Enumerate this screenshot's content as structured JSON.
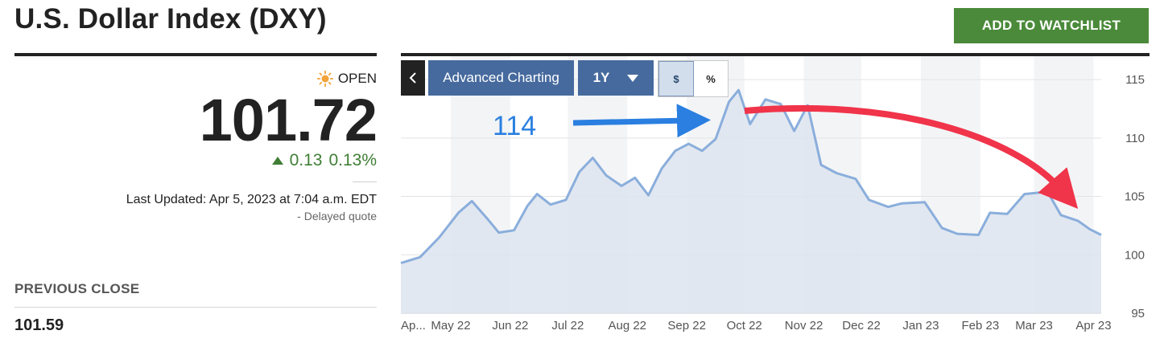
{
  "header": {
    "title": "U.S. Dollar Index (DXY)",
    "watchlist_button": "ADD TO WATCHLIST"
  },
  "quote": {
    "status": "OPEN",
    "price": "101.72",
    "change": "0.13",
    "change_pct": "0.13%",
    "last_updated": "Last Updated: Apr 5, 2023 at 7:04 a.m. EDT",
    "delayed": "-  Delayed quote",
    "previous_close_label": "PREVIOUS CLOSE",
    "previous_close_value": "101.59"
  },
  "chart_toolbar": {
    "back_icon": "chevron-left-icon",
    "advanced_label": "Advanced Charting",
    "range_label": "1Y",
    "currency_label": "$",
    "percent_label": "%",
    "selected_mode": "$"
  },
  "annotation": {
    "peak_label": "114"
  },
  "colors": {
    "accent_green": "#4a8a3a",
    "up_green": "#3f7e35",
    "toolbar_blue": "#466a9e",
    "line_blue": "#8aaedc",
    "area_fill": "#dde4ee",
    "annotation_blue": "#2a7fe0",
    "annotation_red": "#f0344a"
  },
  "chart_data": {
    "type": "area",
    "title": "",
    "xlabel": "",
    "ylabel": "",
    "ylim": [
      95,
      117
    ],
    "yticks": [
      95,
      100,
      105,
      110,
      115
    ],
    "x_tick_labels": [
      "Ap...",
      "May 22",
      "Jun 22",
      "Jul 22",
      "Aug 22",
      "Sep 22",
      "Oct 22",
      "Nov 22",
      "Dec 22",
      "Jan 23",
      "Feb 23",
      "Mar 23",
      "Apr 23"
    ],
    "grid": true,
    "series": [
      {
        "x": [
          "2022-04-05",
          "2022-04-15",
          "2022-04-25",
          "2022-05-05",
          "2022-05-12",
          "2022-05-20",
          "2022-05-26",
          "2022-06-03",
          "2022-06-10",
          "2022-06-15",
          "2022-06-22",
          "2022-06-30",
          "2022-07-07",
          "2022-07-14",
          "2022-07-21",
          "2022-07-29",
          "2022-08-05",
          "2022-08-12",
          "2022-08-19",
          "2022-08-26",
          "2022-09-02",
          "2022-09-09",
          "2022-09-16",
          "2022-09-23",
          "2022-09-28",
          "2022-10-04",
          "2022-10-12",
          "2022-10-20",
          "2022-10-27",
          "2022-11-03",
          "2022-11-10",
          "2022-11-18",
          "2022-11-28",
          "2022-12-05",
          "2022-12-15",
          "2022-12-22",
          "2023-01-03",
          "2023-01-12",
          "2023-01-20",
          "2023-01-31",
          "2023-02-06",
          "2023-02-15",
          "2023-02-24",
          "2023-03-08",
          "2023-03-15",
          "2023-03-24",
          "2023-03-30",
          "2023-04-05"
        ],
        "values": [
          99.3,
          99.8,
          101.5,
          103.6,
          104.6,
          103.1,
          101.9,
          102.1,
          104.2,
          105.2,
          104.3,
          104.7,
          107.1,
          108.3,
          106.8,
          105.9,
          106.6,
          105.1,
          107.4,
          108.9,
          109.5,
          108.9,
          109.9,
          113.1,
          114.1,
          111.2,
          113.3,
          112.9,
          110.6,
          112.8,
          107.7,
          107.0,
          106.5,
          104.7,
          104.1,
          104.4,
          104.5,
          102.3,
          101.8,
          101.7,
          103.6,
          103.5,
          105.2,
          105.4,
          103.4,
          102.9,
          102.2,
          101.7
        ]
      }
    ]
  }
}
